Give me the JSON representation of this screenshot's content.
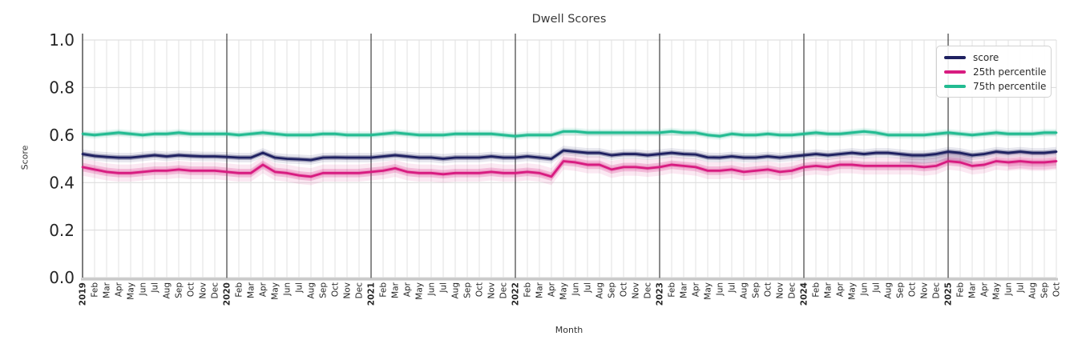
{
  "chart": {
    "title": "Dwell Scores",
    "xlabel": "Month",
    "ylabel": "Score"
  },
  "chart_data": {
    "type": "line",
    "title": "Dwell Scores",
    "xlabel": "Month",
    "ylabel": "Score",
    "ylim": [
      0.0,
      1.0
    ],
    "yticks": [
      0.0,
      0.2,
      0.4,
      0.6,
      0.8,
      1.0
    ],
    "grid": true,
    "legend_position": "upper right",
    "year_gridlines": [
      "2020",
      "2021",
      "2022",
      "2023",
      "2024",
      "2025"
    ],
    "x_labels": [
      "2019",
      "Feb",
      "Mar",
      "Apr",
      "May",
      "Jun",
      "Jul",
      "Aug",
      "Sep",
      "Oct",
      "Nov",
      "Dec",
      "2020",
      "Feb",
      "Mar",
      "Apr",
      "May",
      "Jun",
      "Jul",
      "Aug",
      "Sep",
      "Oct",
      "Nov",
      "Dec",
      "2021",
      "Feb",
      "Mar",
      "Apr",
      "May",
      "Jun",
      "Jul",
      "Aug",
      "Sep",
      "Oct",
      "Nov",
      "Dec",
      "2022",
      "Feb",
      "Mar",
      "Apr",
      "May",
      "Jun",
      "Jul",
      "Aug",
      "Sep",
      "Oct",
      "Nov",
      "Dec",
      "2023",
      "Feb",
      "Mar",
      "Apr",
      "May",
      "Jun",
      "Jul",
      "Aug",
      "Sep",
      "Oct",
      "Nov",
      "Dec",
      "2024",
      "Feb",
      "Mar",
      "Apr",
      "May",
      "Jun",
      "Jul",
      "Aug",
      "Sep",
      "Oct",
      "Nov",
      "Dec",
      "2025",
      "Feb",
      "Mar",
      "Apr",
      "May",
      "Jun",
      "Jul",
      "Aug",
      "Sep",
      "Oct"
    ],
    "series": [
      {
        "name": "score",
        "color": "#1f2161",
        "band_halfwidth": 0.01,
        "values": [
          0.52,
          0.512,
          0.508,
          0.505,
          0.505,
          0.51,
          0.515,
          0.51,
          0.515,
          0.512,
          0.51,
          0.51,
          0.508,
          0.505,
          0.505,
          0.525,
          0.505,
          0.5,
          0.498,
          0.495,
          0.505,
          0.506,
          0.505,
          0.505,
          0.505,
          0.51,
          0.515,
          0.51,
          0.505,
          0.505,
          0.5,
          0.505,
          0.505,
          0.505,
          0.51,
          0.505,
          0.505,
          0.51,
          0.505,
          0.5,
          0.535,
          0.53,
          0.525,
          0.525,
          0.515,
          0.52,
          0.52,
          0.515,
          0.52,
          0.525,
          0.52,
          0.518,
          0.506,
          0.505,
          0.51,
          0.505,
          0.505,
          0.51,
          0.505,
          0.51,
          0.515,
          0.52,
          0.515,
          0.52,
          0.525,
          0.52,
          0.525,
          0.525,
          0.52,
          0.515,
          0.515,
          0.52,
          0.53,
          0.525,
          0.515,
          0.52,
          0.53,
          0.525,
          0.53,
          0.525,
          0.525,
          0.53
        ]
      },
      {
        "name": "25th percentile",
        "color": "#d81b80",
        "band_halfwidth": 0.018,
        "values": [
          0.465,
          0.455,
          0.445,
          0.44,
          0.44,
          0.445,
          0.45,
          0.45,
          0.455,
          0.45,
          0.45,
          0.45,
          0.445,
          0.44,
          0.44,
          0.475,
          0.445,
          0.44,
          0.43,
          0.425,
          0.44,
          0.44,
          0.44,
          0.44,
          0.445,
          0.45,
          0.46,
          0.445,
          0.44,
          0.44,
          0.435,
          0.44,
          0.44,
          0.44,
          0.445,
          0.44,
          0.44,
          0.445,
          0.44,
          0.425,
          0.49,
          0.485,
          0.475,
          0.475,
          0.455,
          0.465,
          0.465,
          0.46,
          0.465,
          0.475,
          0.47,
          0.465,
          0.45,
          0.45,
          0.455,
          0.445,
          0.45,
          0.455,
          0.445,
          0.45,
          0.465,
          0.47,
          0.465,
          0.475,
          0.475,
          0.47,
          0.47,
          0.47,
          0.47,
          0.47,
          0.465,
          0.47,
          0.49,
          0.485,
          0.47,
          0.475,
          0.49,
          0.485,
          0.49,
          0.485,
          0.485,
          0.49
        ]
      },
      {
        "name": "75th percentile",
        "color": "#22bb91",
        "band_halfwidth": 0.008,
        "values": [
          0.605,
          0.6,
          0.605,
          0.61,
          0.605,
          0.6,
          0.605,
          0.605,
          0.61,
          0.605,
          0.605,
          0.605,
          0.605,
          0.6,
          0.605,
          0.61,
          0.605,
          0.6,
          0.6,
          0.6,
          0.605,
          0.605,
          0.6,
          0.6,
          0.6,
          0.605,
          0.61,
          0.605,
          0.6,
          0.6,
          0.6,
          0.605,
          0.605,
          0.605,
          0.605,
          0.6,
          0.595,
          0.6,
          0.6,
          0.6,
          0.615,
          0.615,
          0.61,
          0.61,
          0.61,
          0.61,
          0.61,
          0.61,
          0.61,
          0.615,
          0.61,
          0.61,
          0.6,
          0.595,
          0.605,
          0.6,
          0.6,
          0.605,
          0.6,
          0.6,
          0.605,
          0.61,
          0.605,
          0.605,
          0.61,
          0.615,
          0.61,
          0.6,
          0.6,
          0.6,
          0.6,
          0.605,
          0.61,
          0.605,
          0.6,
          0.605,
          0.61,
          0.605,
          0.605,
          0.605,
          0.61,
          0.61
        ]
      }
    ],
    "band_anomalies": [
      {
        "series": "score",
        "from_index": 68,
        "to_index": 74,
        "extra_below": 0.035
      },
      {
        "series": "25th percentile",
        "from_index": 77,
        "to_index": 81,
        "extra_below": 0.03
      }
    ]
  }
}
